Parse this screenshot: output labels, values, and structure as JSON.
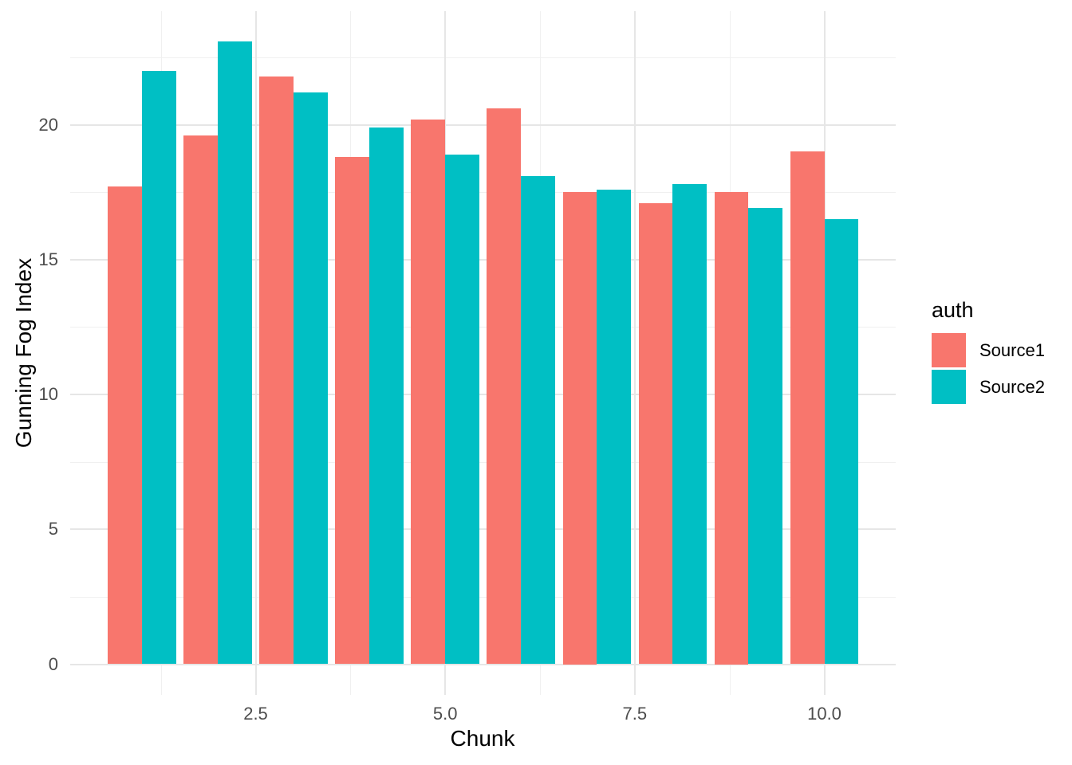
{
  "chart_data": {
    "type": "bar",
    "title": "",
    "xlabel": "Chunk",
    "ylabel": "Gunning Fog Index",
    "categories": [
      1,
      2,
      3,
      4,
      5,
      6,
      7,
      8,
      9,
      10
    ],
    "series": [
      {
        "name": "Source1",
        "color": "#F8766D",
        "values": [
          17.7,
          19.6,
          21.8,
          18.8,
          20.2,
          20.6,
          17.5,
          17.1,
          17.5,
          19.0
        ]
      },
      {
        "name": "Source2",
        "color": "#00BFC4",
        "values": [
          22.0,
          23.1,
          21.2,
          19.9,
          18.9,
          18.1,
          17.6,
          17.8,
          16.9,
          16.5
        ]
      }
    ],
    "x_ticks": [
      2.5,
      5.0,
      7.5,
      10.0
    ],
    "x_tick_labels": [
      "2.5",
      "5.0",
      "7.5",
      "10.0"
    ],
    "x_minor_ticks": [
      1.25,
      3.75,
      6.25,
      8.75
    ],
    "y_ticks": [
      0,
      5,
      10,
      15,
      20
    ],
    "y_tick_labels": [
      "0",
      "5",
      "10",
      "15",
      "20"
    ],
    "y_minor_ticks": [
      2.5,
      7.5,
      12.5,
      17.5,
      22.5
    ],
    "xlim": [
      0.055,
      10.945
    ],
    "ylim": [
      -1.15,
      24.22
    ],
    "grid": true,
    "bar_width_units": 0.45,
    "legend": {
      "title": "auth",
      "position": "right",
      "entries": [
        "Source1",
        "Source2"
      ]
    },
    "colors": {
      "background": "#FFFFFF",
      "source1": "#F8766D",
      "source2": "#00BFC4",
      "grid_major": "#E6E6E6",
      "grid_minor": "#F0F0F0",
      "axis_text": "#4D4D4D",
      "axis_title": "#000000"
    }
  }
}
